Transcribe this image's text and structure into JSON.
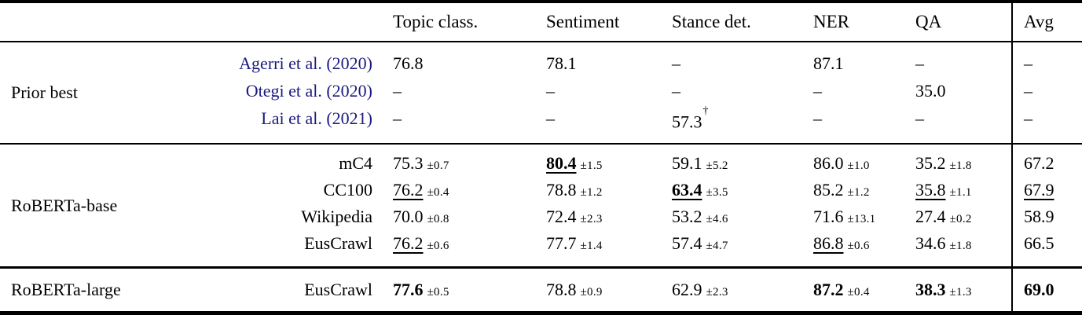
{
  "colors": {
    "text": "#000000",
    "citation_link": "#1a1a80",
    "background": "#ffffff",
    "rule": "#000000"
  },
  "header": {
    "topic": "Topic class.",
    "sentiment": "Sentiment",
    "stance": "Stance det.",
    "ner": "NER",
    "qa": "QA",
    "avg": "Avg"
  },
  "sections": [
    {
      "group": "Prior best",
      "rows": [
        {
          "label": "Agerri et al. (2020)",
          "topic": {
            "v": "76.8",
            "pm": ""
          },
          "sentiment": {
            "v": "78.1",
            "pm": ""
          },
          "stance": {
            "v": "–",
            "pm": ""
          },
          "ner": {
            "v": "87.1",
            "pm": ""
          },
          "qa": {
            "v": "–",
            "pm": ""
          },
          "avg": {
            "v": "–"
          }
        },
        {
          "label": "Otegi et al. (2020)",
          "topic": {
            "v": "–",
            "pm": ""
          },
          "sentiment": {
            "v": "–",
            "pm": ""
          },
          "stance": {
            "v": "–",
            "pm": ""
          },
          "ner": {
            "v": "–",
            "pm": ""
          },
          "qa": {
            "v": "35.0",
            "pm": ""
          },
          "avg": {
            "v": "–"
          }
        },
        {
          "label": "Lai et al. (2021)",
          "topic": {
            "v": "–",
            "pm": ""
          },
          "sentiment": {
            "v": "–",
            "pm": ""
          },
          "stance": {
            "v": "57.3",
            "sup": "†",
            "pm": ""
          },
          "ner": {
            "v": "–",
            "pm": ""
          },
          "qa": {
            "v": "–",
            "pm": ""
          },
          "avg": {
            "v": "–"
          }
        }
      ]
    },
    {
      "group": "RoBERTa-base",
      "rows": [
        {
          "label": "mC4",
          "topic": {
            "v": "75.3",
            "pm": "±0.7"
          },
          "sentiment": {
            "v": "80.4",
            "pm": "±1.5"
          },
          "stance": {
            "v": "59.1",
            "pm": "±5.2"
          },
          "ner": {
            "v": "86.0",
            "pm": "±1.0"
          },
          "qa": {
            "v": "35.2",
            "pm": "±1.8"
          },
          "avg": {
            "v": "67.2"
          }
        },
        {
          "label": "CC100",
          "topic": {
            "v": "76.2",
            "pm": "±0.4"
          },
          "sentiment": {
            "v": "78.8",
            "pm": "±1.2"
          },
          "stance": {
            "v": "63.4",
            "pm": "±3.5"
          },
          "ner": {
            "v": "85.2",
            "pm": "±1.2"
          },
          "qa": {
            "v": "35.8",
            "pm": "±1.1"
          },
          "avg": {
            "v": "67.9"
          }
        },
        {
          "label": "Wikipedia",
          "topic": {
            "v": "70.0",
            "pm": "±0.8"
          },
          "sentiment": {
            "v": "72.4",
            "pm": "±2.3"
          },
          "stance": {
            "v": "53.2",
            "pm": "±4.6"
          },
          "ner": {
            "v": "71.6",
            "pm": "±13.1"
          },
          "qa": {
            "v": "27.4",
            "pm": "±0.2"
          },
          "avg": {
            "v": "58.9"
          }
        },
        {
          "label": "EusCrawl",
          "topic": {
            "v": "76.2",
            "pm": "±0.6"
          },
          "sentiment": {
            "v": "77.7",
            "pm": "±1.4"
          },
          "stance": {
            "v": "57.4",
            "pm": "±4.7"
          },
          "ner": {
            "v": "86.8",
            "pm": "±0.6"
          },
          "qa": {
            "v": "34.6",
            "pm": "±1.8"
          },
          "avg": {
            "v": "66.5"
          }
        }
      ]
    },
    {
      "group": "RoBERTa-large",
      "rows": [
        {
          "label": "EusCrawl",
          "topic": {
            "v": "77.6",
            "pm": "±0.5"
          },
          "sentiment": {
            "v": "78.8",
            "pm": "±0.9"
          },
          "stance": {
            "v": "62.9",
            "pm": "±2.3"
          },
          "ner": {
            "v": "87.2",
            "pm": "±0.4"
          },
          "qa": {
            "v": "38.3",
            "pm": "±1.3"
          },
          "avg": {
            "v": "69.0"
          }
        }
      ]
    }
  ]
}
